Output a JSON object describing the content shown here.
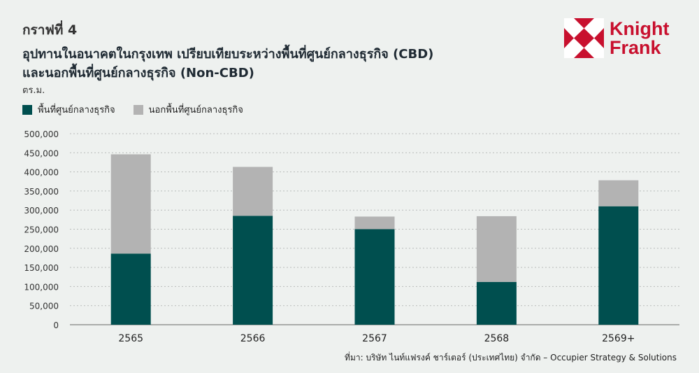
{
  "header": {
    "figure_number": "กราฟที่ 4",
    "title_line1": "อุปทานในอนาคตในกรุงเทพ เปรียบเทียบระหว่างพื้นที่ศูนย์กลางธุรกิจ (CBD)",
    "title_line2": "และนอกพื้นที่ศูนย์กลางธุรกิจ (Non-CBD)"
  },
  "logo": {
    "line1": "Knight",
    "line2": "Frank",
    "color": "#c8102e"
  },
  "source": "ที่มา: บริษัท ไนท์แฟรงค์ ชาร์เตอร์ (ประเทศไทย) จำกัด – Occupier Strategy & Solutions",
  "chart_data": {
    "type": "bar",
    "stacked": true,
    "ylabel": "ตร.ม.",
    "categories": [
      "2565",
      "2566",
      "2567",
      "2568",
      "2569+"
    ],
    "series": [
      {
        "name": "พื้นที่ศูนย์กลางธุรกิจ",
        "color": "#004f4f",
        "values": [
          186000,
          285000,
          250000,
          112000,
          310000
        ]
      },
      {
        "name": "นอกพื้นที่ศูนย์กลางธุรกิจ",
        "color": "#b3b3b3",
        "values": [
          260000,
          128000,
          33000,
          172000,
          68000
        ]
      }
    ],
    "ylim": [
      0,
      500000
    ],
    "yticks": [
      0,
      50000,
      100000,
      150000,
      200000,
      250000,
      300000,
      350000,
      400000,
      450000,
      500000
    ],
    "ytick_labels": [
      "0",
      "50,000",
      "100,000",
      "150,000",
      "200,000",
      "250,000",
      "300,000",
      "350,000",
      "400,000",
      "450,000",
      "500,000"
    ],
    "grid": true,
    "legend_position": "top-left"
  }
}
